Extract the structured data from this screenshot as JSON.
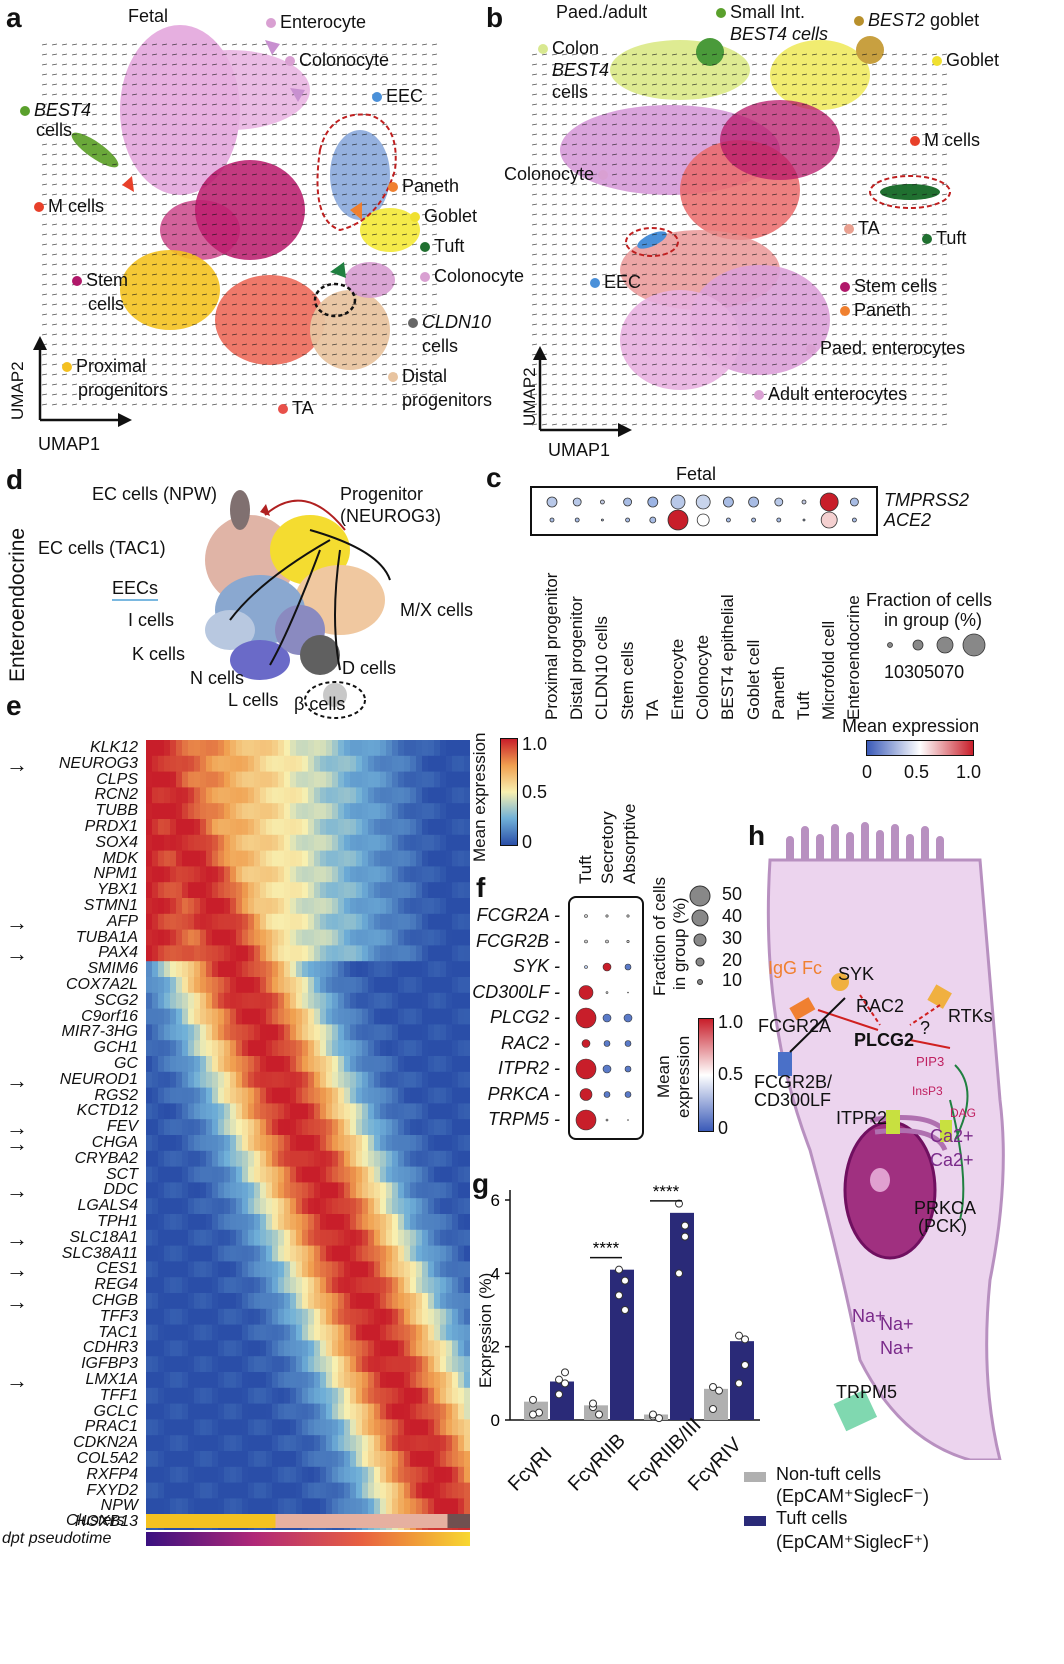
{
  "panels": {
    "a": {
      "letter": "a",
      "title": "Fetal",
      "axis_y": "UMAP2",
      "axis_x": "UMAP1",
      "labels": [
        {
          "text": "Enterocyte",
          "color": "#d9a0d2"
        },
        {
          "text": "Colonocyte",
          "color": "#d9a0d2"
        },
        {
          "text": "EEC",
          "color": "#4a90d9"
        },
        {
          "text": "BEST4",
          "color": "#5aa02c"
        },
        {
          "text": "cells",
          "color": ""
        },
        {
          "text": "M cells",
          "color": "#e8402a"
        },
        {
          "text": "Paneth",
          "color": "#f08030"
        },
        {
          "text": "Goblet",
          "color": "#f0e030"
        },
        {
          "text": "Tuft",
          "color": "#207030"
        },
        {
          "text": "Colonocyte",
          "color": "#d9a0d2"
        },
        {
          "text": "Stem",
          "color": "#b0186a"
        },
        {
          "text": "cells",
          "color": ""
        },
        {
          "text": "CLDN10",
          "color": "#666666"
        },
        {
          "text": "cells",
          "color": ""
        },
        {
          "text": "Proximal",
          "color": "#f4c020"
        },
        {
          "text": "progenitors",
          "color": ""
        },
        {
          "text": "Distal",
          "color": "#e8c4a0"
        },
        {
          "text": "progenitors",
          "color": ""
        },
        {
          "text": "TA",
          "color": "#e8504a"
        }
      ]
    },
    "b": {
      "letter": "b",
      "title": "Paed./adult",
      "axis_y": "UMAP2",
      "axis_x": "UMAP1",
      "labels": [
        {
          "text": "Small Int.",
          "color": "#5aa02c"
        },
        {
          "text": "BEST4 cells",
          "color": ""
        },
        {
          "text": "BEST2",
          "color": "#b8902c"
        },
        {
          "text": "goblet",
          "color": ""
        },
        {
          "text": "Goblet",
          "color": "#f0e030"
        },
        {
          "text": "Colon",
          "color": "#d8e890"
        },
        {
          "text": "BEST4",
          "color": ""
        },
        {
          "text": "cells",
          "color": ""
        },
        {
          "text": "M cells",
          "color": "#e8402a"
        },
        {
          "text": "Colonocyte",
          "color": "#d9a0d2"
        },
        {
          "text": "TA",
          "color": "#e8a090"
        },
        {
          "text": "Tuft",
          "color": "#207030"
        },
        {
          "text": "EEC",
          "color": "#4a90d9"
        },
        {
          "text": "Stem cells",
          "color": "#b0186a"
        },
        {
          "text": "Paneth",
          "color": "#f08030"
        },
        {
          "text": "Paed. enterocytes",
          "color": "#d9a0d2"
        },
        {
          "text": "Adult enterocytes",
          "color": "#d9a0d2"
        }
      ]
    },
    "c": {
      "letter": "c",
      "title": "Fetal",
      "genes": [
        "TMPRSS2",
        "ACE2"
      ],
      "groups": [
        "Proximal progenitor",
        "Distal progenitor",
        "CLDN10 cells",
        "Stem cells",
        "TA",
        "Enterocyte",
        "Colonocyte",
        "BEST4 epithelial",
        "Goblet cell",
        "Paneth",
        "Tuft",
        "Microfold cell",
        "Enteroendocrine"
      ],
      "fraction_title": "Fraction of cells",
      "fraction_title2": "in group (%)",
      "fraction_ticks": [
        "10",
        "30",
        "50",
        "70"
      ],
      "expr_title": "Mean expression",
      "expr_ticks": [
        "0",
        "0.5",
        "1.0"
      ]
    },
    "d": {
      "letter": "d",
      "side": "Enteroendocrine",
      "labels": [
        "EC cells (NPW)",
        "Progenitor",
        "(NEUROG3)",
        "EC cells (TAC1)",
        "EECs",
        "I cells",
        "K cells",
        "N cells",
        "L cells",
        "β cells",
        "D cells",
        "M/X cells"
      ]
    },
    "e": {
      "letter": "e",
      "genes": [
        "KLK12",
        "NEUROG3",
        "CLPS",
        "RCN2",
        "TUBB",
        "PRDX1",
        "SOX4",
        "MDK",
        "NPM1",
        "YBX1",
        "STMN1",
        "AFP",
        "TUBA1A",
        "PAX4",
        "SMIM6",
        "COX7A2L",
        "SCG2",
        "C9orf16",
        "MIR7-3HG",
        "GCH1",
        "GC",
        "NEUROD1",
        "RGS2",
        "KCTD12",
        "FEV",
        "CHGA",
        "CRYBA2",
        "SCT",
        "DDC",
        "LGALS4",
        "TPH1",
        "SLC18A1",
        "SLC38A11",
        "CES1",
        "REG4",
        "CHGB",
        "TFF3",
        "TAC1",
        "CDHR3",
        "IGFBP3",
        "LMX1A",
        "TFF1",
        "GCLC",
        "PRAC1",
        "CDKN2A",
        "COL5A2",
        "RXFP4",
        "FXYD2",
        "NPW",
        "HOXB13"
      ],
      "arrows": [
        "NEUROG3",
        "AFP",
        "PAX4",
        "NEUROD1",
        "FEV",
        "CHGA",
        "DDC",
        "SLC18A1",
        "CES1",
        "CHGB",
        "LMX1A"
      ],
      "row_clusters": "Clusters",
      "row_dpt": "dpt pseudotime",
      "cbar_title": "Mean expression",
      "cbar_ticks": [
        "1.0",
        "0.5",
        "0"
      ]
    },
    "f": {
      "letter": "f",
      "groups": [
        "Tuft",
        "Secretory",
        "Absorptive"
      ],
      "genes": [
        "FCGR2A",
        "FCGR2B",
        "SYK",
        "CD300LF",
        "PLCG2",
        "RAC2",
        "ITPR2",
        "PRKCA",
        "TRPM5"
      ],
      "fraction_title": "Fraction of cells",
      "fraction_title2": "in group (%)",
      "fraction_ticks": [
        "50",
        "40",
        "30",
        "20",
        "10"
      ],
      "expr_title": "Mean",
      "expr_title2": "expression",
      "expr_ticks": [
        "1.0",
        "0.5",
        "0"
      ]
    },
    "g": {
      "letter": "g",
      "legend": [
        {
          "label": "Non-tuft cells",
          "sub": "(EpCAM⁺SiglecF⁻)",
          "color": "#b0b0b0"
        },
        {
          "label": "Tuft cells",
          "sub": "(EpCAM⁺SiglecF⁺)",
          "color": "#2a2a78"
        }
      ]
    },
    "h": {
      "letter": "h",
      "labels": [
        "IgG Fc",
        "SYK",
        "RAC2",
        "RTKs",
        "?",
        "FCGR2A",
        "PLCG2",
        "PIP3",
        "FCGR2B/",
        "CD300LF",
        "InsP3",
        "DAG",
        "ITPR2",
        "Ca2+",
        "Ca2+",
        "PRKCA",
        "(PCK)",
        "Na+",
        "Na+",
        "Na+",
        "TRPM5"
      ]
    }
  },
  "chart_data": {
    "type": "bar",
    "title": "",
    "ylabel": "Expression (%)",
    "xlabel": "",
    "categories": [
      "FcγRI",
      "FcγRIIB",
      "FcγRIIB/III",
      "FcγRIV"
    ],
    "ylim": [
      0,
      6
    ],
    "yticks": [
      "0",
      "2",
      "4",
      "6"
    ],
    "series": [
      {
        "name": "Non-tuft cells",
        "values": [
          0.5,
          0.4,
          0.15,
          0.85
        ]
      },
      {
        "name": "Tuft cells",
        "values": [
          1.05,
          4.1,
          5.65,
          2.15
        ]
      }
    ],
    "points": [
      [
        [
          0.55,
          0.2,
          0.15
        ],
        [
          0.7,
          1.0,
          1.1,
          1.3
        ]
      ],
      [
        [
          0.35,
          0.15,
          0.45
        ],
        [
          3.4,
          3.8,
          4.1,
          3.0
        ]
      ],
      [
        [
          0.1,
          0.05,
          0.15
        ],
        [
          5.9,
          5.3,
          4.0,
          5.0
        ]
      ],
      [
        [
          0.9,
          0.8,
          0.3
        ],
        [
          2.3,
          1.5,
          1.0,
          2.2
        ]
      ]
    ],
    "significance": [
      {
        "category": "FcγRIIB",
        "text": "****"
      },
      {
        "category": "FcγRIIB/III",
        "text": "****"
      }
    ]
  }
}
